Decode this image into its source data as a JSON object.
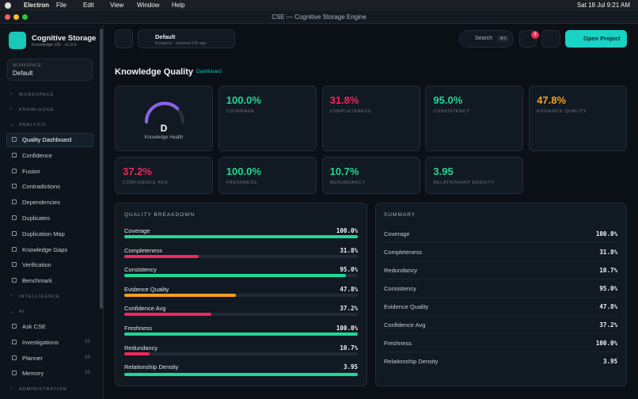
{
  "menubar": {
    "app": "Electron",
    "menus": [
      "File",
      "Edit",
      "View",
      "Window",
      "Help"
    ],
    "clock": "Sat 18 Jul  9:21 AM"
  },
  "window": {
    "title": "CSE — Cognitive Storage Engine"
  },
  "sidebar": {
    "brand": "Cognitive Storage",
    "version": "Knowledge OS · v1.0.0",
    "workspace_label": "WORKSPACE",
    "workspace": "Default",
    "sections": [
      {
        "title": "WORKSPACE",
        "items": []
      },
      {
        "title": "KNOWLEDGE",
        "items": []
      },
      {
        "title": "ANALYSIS",
        "items": [
          {
            "label": "Quality Dashboard"
          },
          {
            "label": "Confidence"
          },
          {
            "label": "Fusion"
          },
          {
            "label": "Contradictions"
          },
          {
            "label": "Dependencies"
          },
          {
            "label": "Duplicates"
          },
          {
            "label": "Duplication Map"
          },
          {
            "label": "Knowledge Gaps"
          },
          {
            "label": "Verification"
          },
          {
            "label": "Benchmark"
          }
        ]
      },
      {
        "title": "INTELLIGENCE",
        "items": []
      },
      {
        "title": "AI",
        "items": [
          {
            "label": "Ask CSE"
          },
          {
            "label": "Investigations",
            "count": 10
          },
          {
            "label": "Planner",
            "count": 10
          },
          {
            "label": "Memory",
            "count": 10
          }
        ]
      },
      {
        "title": "ADMINISTRATION",
        "items": []
      }
    ]
  },
  "topbar": {
    "project": "Default",
    "meta": "8 projects · scanned 12h ago",
    "search": "Search",
    "shortcut": "⌘K",
    "notifications": 8,
    "button": "Open Project"
  },
  "header": {
    "title": "Knowledge Quality",
    "badge": "Dashboard"
  },
  "health": {
    "grade": "D",
    "label": "Knowledge Health"
  },
  "metrics": [
    {
      "value": "100.0%",
      "name": "COVERAGE",
      "color": "#1ed896"
    },
    {
      "value": "31.8%",
      "name": "COMPLETENESS",
      "color": "#f0275a"
    },
    {
      "value": "95.0%",
      "name": "CONSISTENCY",
      "color": "#1ed896"
    },
    {
      "value": "47.8%",
      "name": "EVIDENCE QUALITY",
      "color": "#f5a01e"
    },
    {
      "value": "37.2%",
      "name": "CONFIDENCE AVG",
      "color": "#f0275a"
    },
    {
      "value": "100.0%",
      "name": "FRESHNESS",
      "color": "#1ed896"
    },
    {
      "value": "10.7%",
      "name": "REDUNDANCY",
      "color": "#1ed896"
    },
    {
      "value": "3.95",
      "name": "RELATIONSHIP DENSITY",
      "color": "#1ed896"
    }
  ],
  "breakdown": {
    "title": "QUALITY BREAKDOWN",
    "items": [
      {
        "name": "Coverage",
        "value": 100.0,
        "label": "100.0%",
        "color": "#1ed896"
      },
      {
        "name": "Completeness",
        "value": 31.8,
        "label": "31.8%",
        "color": "#f0275a"
      },
      {
        "name": "Consistency",
        "value": 95.0,
        "label": "95.0%",
        "color": "#1ed896"
      },
      {
        "name": "Evidence Quality",
        "value": 47.8,
        "label": "47.8%",
        "color": "#f5a01e"
      },
      {
        "name": "Confidence Avg",
        "value": 37.2,
        "label": "37.2%",
        "color": "#f0275a"
      },
      {
        "name": "Freshness",
        "value": 100.0,
        "label": "100.0%",
        "color": "#1ed896"
      },
      {
        "name": "Redundancy",
        "value": 10.7,
        "label": "10.7%",
        "color": "#f0275a"
      },
      {
        "name": "Relationship Density",
        "value": 3.95
      }
    ]
  },
  "summary": {
    "title": "SUMMARY",
    "rows": [
      [
        "Coverage",
        "100.0%"
      ],
      [
        "Completeness",
        "31.8%"
      ],
      [
        "Redundancy",
        "10.7%"
      ],
      [
        "Consistency",
        "95.0%"
      ],
      [
        "Evidence Quality",
        "47.8%"
      ],
      [
        "Confidence Avg",
        "37.2%"
      ],
      [
        "Freshness",
        "100.0%"
      ],
      [
        "Relationship Density",
        "3.95"
      ]
    ]
  }
}
